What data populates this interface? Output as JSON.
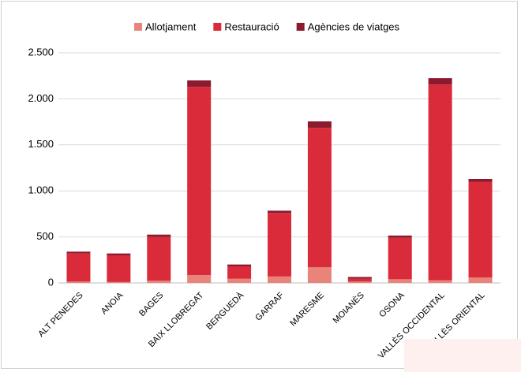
{
  "chart_data": {
    "type": "stacked_bar",
    "categories": [
      "ALT PENEDES",
      "ANOIA",
      "BAGES",
      "BAIX LLOBREGAT",
      "BERGUEDÀ",
      "GARRAF",
      "MARESME",
      "MOIANÈS",
      "OSONA",
      "VALLÈS OCCIDENTAL",
      "VALLÈS ORIENTAL"
    ],
    "series": [
      {
        "name": "Allotjament",
        "color": "#e8847a",
        "values": [
          15,
          10,
          25,
          85,
          45,
          70,
          170,
          15,
          40,
          30,
          60
        ]
      },
      {
        "name": "Restauració",
        "color": "#d92b3a",
        "values": [
          305,
          290,
          475,
          2045,
          135,
          690,
          1515,
          30,
          450,
          2125,
          1040
        ]
      },
      {
        "name": "Agències de viatges",
        "color": "#8b1a2e",
        "values": [
          20,
          20,
          25,
          70,
          20,
          25,
          70,
          20,
          25,
          70,
          30
        ]
      }
    ],
    "ylim": [
      0,
      2500
    ],
    "yticks": [
      0,
      500,
      {
        "value": 1000,
        "label": "1.000"
      },
      {
        "value": 1500,
        "label": "1.500"
      },
      {
        "value": 2000,
        "label": "2.000"
      },
      {
        "value": 2500,
        "label": "2.500"
      }
    ],
    "grid": true,
    "legend": "top"
  }
}
